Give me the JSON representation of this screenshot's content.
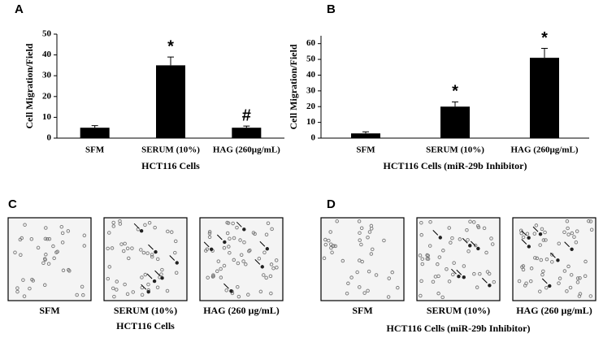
{
  "chart_data": [
    {
      "type": "bar",
      "panel_label": "A",
      "ylabel": "Cell Migration/Field",
      "xlabel": "HCT116 Cells",
      "categories": [
        "SFM",
        "SERUM (10%)",
        "HAG (260µg/mL)"
      ],
      "values": [
        5,
        35,
        5
      ],
      "errors": [
        1,
        4,
        0.8
      ],
      "value_annotations": [
        null,
        "*",
        "#"
      ],
      "color": "#000000",
      "ylim": [
        0,
        50
      ],
      "yticks": [
        0,
        10,
        20,
        30,
        40,
        50
      ]
    },
    {
      "type": "bar",
      "panel_label": "B",
      "ylabel": "Cell Migration/Field",
      "xlabel": "HCT116 Cells (miR-29b Inhibitor)",
      "categories": [
        "SFM",
        "SERUM (10%)",
        "HAG (260µg/mL)"
      ],
      "values": [
        3,
        20,
        51
      ],
      "errors": [
        1,
        3,
        6
      ],
      "value_annotations": [
        null,
        "*",
        "*"
      ],
      "color": "#000000",
      "ylim": [
        0,
        65
      ],
      "yticks": [
        0,
        10,
        20,
        30,
        40,
        50,
        60
      ]
    }
  ],
  "image_panels": [
    {
      "panel_label": "C",
      "captions": [
        "SFM",
        "SERUM (10%)",
        "HAG (260 µg/mL)"
      ],
      "xlabel": "HCT116 Cells"
    },
    {
      "panel_label": "D",
      "captions": [
        "SFM",
        "SERUM (10%)",
        "HAG (260 µg/mL)"
      ],
      "xlabel": "HCT116 Cells (miR-29b Inhibitor)"
    }
  ]
}
